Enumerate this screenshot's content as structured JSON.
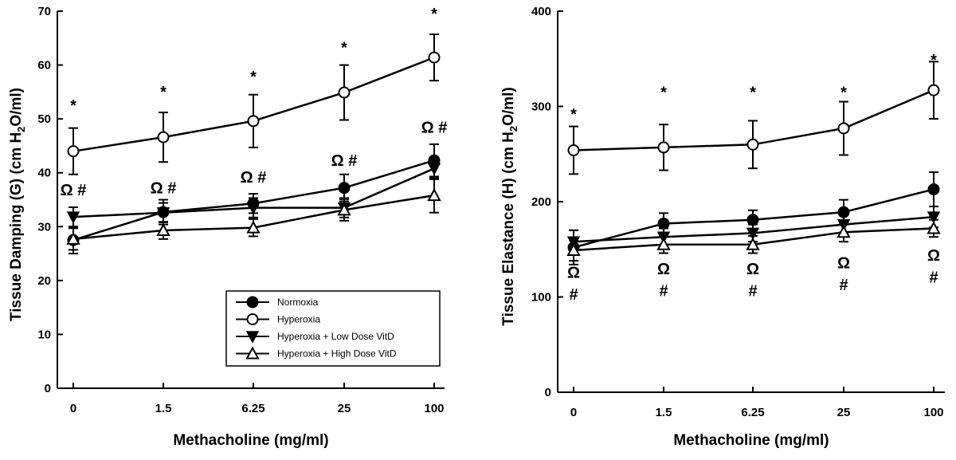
{
  "chart_data": [
    {
      "type": "line",
      "id": "damping",
      "categories": [
        "0",
        "1.5",
        "6.25",
        "25",
        "100"
      ],
      "xlabel": "Methacholine  (mg/ml)",
      "ylabel_main": "Tissue Damping  (G)  (cm H",
      "ylabel_sub": "2",
      "ylabel_end": "O/ml)",
      "ylim": [
        0,
        70
      ],
      "yticks": [
        "0",
        "10",
        "20",
        "30",
        "40",
        "50",
        "60",
        "70"
      ],
      "grid": false,
      "legend_position": "bottom-right",
      "series": [
        {
          "name": "Normoxia",
          "marker": "circle-filled",
          "values": [
            27.5,
            32.7,
            34.3,
            37.2,
            42.3
          ],
          "errors": [
            2.5,
            2.3,
            1.8,
            2.5,
            3.0
          ]
        },
        {
          "name": "Hyperoxia",
          "marker": "circle-open",
          "values": [
            44.0,
            46.6,
            49.6,
            54.9,
            61.4
          ],
          "errors": [
            4.3,
            4.6,
            4.9,
            5.1,
            4.3
          ]
        },
        {
          "name": "Hyperoxia + Low Dose VitD",
          "marker": "triangle-down-filled",
          "values": [
            31.8,
            32.6,
            33.5,
            33.5,
            40.8
          ],
          "errors": [
            1.8,
            1.8,
            1.8,
            1.8,
            2.0
          ]
        },
        {
          "name": "Hyperoxia + High Dose VitD",
          "marker": "triangle-up-open",
          "values": [
            27.7,
            29.3,
            29.8,
            33.1,
            35.8
          ],
          "errors": [
            2.0,
            1.6,
            1.6,
            2.0,
            3.2
          ]
        }
      ],
      "annotations": [
        {
          "text": "*",
          "x": "0",
          "y": 51.5
        },
        {
          "text": "*",
          "x": "1.5",
          "y": 54.0
        },
        {
          "text": "*",
          "x": "6.25",
          "y": 56.8
        },
        {
          "text": "*",
          "x": "25",
          "y": 62.2
        },
        {
          "text": "*",
          "x": "100",
          "y": 68.5
        },
        {
          "text": "Ω #",
          "x": "0",
          "y": 35.8
        },
        {
          "text": "Ω #",
          "x": "1.5",
          "y": 36.2
        },
        {
          "text": "Ω #",
          "x": "6.25",
          "y": 38.2
        },
        {
          "text": "Ω #",
          "x": "25",
          "y": 41.3
        },
        {
          "text": "Ω #",
          "x": "100",
          "y": 47.4
        }
      ]
    },
    {
      "type": "line",
      "id": "elastance",
      "categories": [
        "0",
        "1.5",
        "6.25",
        "25",
        "100"
      ],
      "xlabel": "Methacholine  (mg/ml)",
      "ylabel_main": "Tissue Elastance  (H)  (cm H",
      "ylabel_sub": "2",
      "ylabel_end": "O/ml)",
      "ylim": [
        0,
        400
      ],
      "yticks": [
        "0",
        "100",
        "200",
        "300",
        "400"
      ],
      "grid": false,
      "series": [
        {
          "name": "Normoxia",
          "marker": "circle-filled",
          "values": [
            152,
            177,
            181,
            189,
            213
          ],
          "errors": [
            18,
            11,
            10,
            13,
            18
          ]
        },
        {
          "name": "Hyperoxia",
          "marker": "circle-open",
          "values": [
            254,
            257,
            260,
            277,
            317
          ],
          "errors": [
            25,
            24,
            25,
            28,
            30
          ]
        },
        {
          "name": "Hyperoxia + Low Dose VitD",
          "marker": "triangle-down-filled",
          "values": [
            158,
            163,
            167,
            176,
            184
          ],
          "errors": [
            12,
            9,
            9,
            10,
            11
          ]
        },
        {
          "name": "Hyperoxia + High Dose VitD",
          "marker": "triangle-up-open",
          "values": [
            149,
            155,
            155,
            168,
            172
          ],
          "errors": [
            11,
            9,
            9,
            10,
            9
          ]
        }
      ],
      "annotations": [
        {
          "text": "*",
          "x": "0",
          "y": 286
        },
        {
          "text": "*",
          "x": "1.5",
          "y": 309
        },
        {
          "text": "*",
          "x": "6.25",
          "y": 309
        },
        {
          "text": "*",
          "x": "25",
          "y": 309
        },
        {
          "text": "*",
          "x": "100",
          "y": 343
        },
        {
          "text": "Ω",
          "x": "0",
          "y": 120
        },
        {
          "text": "Ω",
          "x": "1.5",
          "y": 124
        },
        {
          "text": "Ω",
          "x": "6.25",
          "y": 124
        },
        {
          "text": "Ω",
          "x": "25",
          "y": 130
        },
        {
          "text": "Ω",
          "x": "100",
          "y": 138
        },
        {
          "text": "#",
          "x": "0",
          "y": 97
        },
        {
          "text": "#",
          "x": "1.5",
          "y": 101
        },
        {
          "text": "#",
          "x": "6.25",
          "y": 101
        },
        {
          "text": "#",
          "x": "25",
          "y": 107
        },
        {
          "text": "#",
          "x": "100",
          "y": 115
        }
      ]
    }
  ]
}
